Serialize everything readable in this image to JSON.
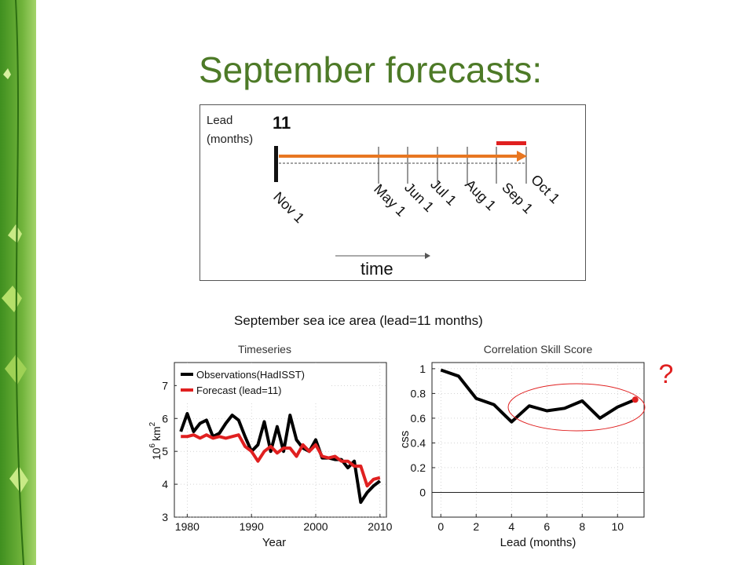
{
  "slide": {
    "title": "September forecasts:"
  },
  "timeline": {
    "lead_label_line1": "Lead",
    "lead_label_line2": "(months)",
    "lead_value": "11",
    "time_label": "time",
    "months": [
      "Nov 1",
      "May 1",
      "Jun 1",
      "Jul 1",
      "Aug 1",
      "Sep 1",
      "Oct 1"
    ],
    "colors": {
      "arrow": "#e87722",
      "target": "#e02020"
    }
  },
  "figure": {
    "title": "September sea ice area (lead=11 months)",
    "question_mark": "?"
  },
  "chart_data": [
    {
      "type": "line",
      "title": "Timeseries",
      "xlabel": "Year",
      "ylabel_base": "10",
      "ylabel_exp": "6",
      "ylabel_unit": "km",
      "ylabel_unit_exp": "2",
      "xlim": [
        1978,
        2011
      ],
      "ylim": [
        3,
        7.7
      ],
      "xticks": [
        1980,
        1990,
        2000,
        2010
      ],
      "yticks": [
        3,
        4,
        5,
        6,
        7
      ],
      "legend_position": "top-left",
      "series": [
        {
          "name": "Observations(HadISST)",
          "color": "#000000",
          "x": [
            1979,
            1980,
            1981,
            1982,
            1983,
            1984,
            1985,
            1986,
            1987,
            1988,
            1989,
            1990,
            1991,
            1992,
            1993,
            1994,
            1995,
            1996,
            1997,
            1998,
            1999,
            2000,
            2001,
            2002,
            2003,
            2004,
            2005,
            2006,
            2007,
            2008,
            2009,
            2010
          ],
          "values": [
            5.6,
            6.15,
            5.6,
            5.85,
            5.95,
            5.45,
            5.55,
            5.85,
            6.1,
            5.95,
            5.45,
            5.0,
            5.2,
            5.9,
            5.0,
            5.75,
            5.0,
            6.1,
            5.35,
            5.1,
            5.0,
            5.35,
            4.8,
            4.8,
            4.75,
            4.75,
            4.5,
            4.7,
            3.45,
            3.75,
            3.95,
            4.1
          ]
        },
        {
          "name": "Forecast (lead=11)",
          "color": "#e02020",
          "x": [
            1979,
            1980,
            1981,
            1982,
            1983,
            1984,
            1985,
            1986,
            1987,
            1988,
            1989,
            1990,
            1991,
            1992,
            1993,
            1994,
            1995,
            1996,
            1997,
            1998,
            1999,
            2000,
            2001,
            2002,
            2003,
            2004,
            2005,
            2006,
            2007,
            2008,
            2009,
            2010
          ],
          "values": [
            5.45,
            5.45,
            5.5,
            5.4,
            5.5,
            5.4,
            5.45,
            5.4,
            5.45,
            5.5,
            5.15,
            5.0,
            4.7,
            5.0,
            5.15,
            4.95,
            5.1,
            5.1,
            4.85,
            5.2,
            5.0,
            5.2,
            4.85,
            4.8,
            4.85,
            4.7,
            4.7,
            4.55,
            4.55,
            3.95,
            4.15,
            4.2
          ]
        }
      ]
    },
    {
      "type": "line",
      "title": "Correlation Skill Score",
      "xlabel": "Lead (months)",
      "ylabel": "css",
      "xlim": [
        -0.5,
        11.5
      ],
      "ylim": [
        -0.2,
        1.05
      ],
      "xticks": [
        0,
        2,
        4,
        6,
        8,
        10
      ],
      "yticks": [
        0,
        0.2,
        0.4,
        0.6,
        0.8,
        1
      ],
      "series": [
        {
          "color": "#000000",
          "x": [
            0,
            1,
            2,
            3,
            4,
            5,
            6,
            7,
            8,
            9,
            10,
            11
          ],
          "values": [
            0.99,
            0.94,
            0.76,
            0.71,
            0.57,
            0.7,
            0.66,
            0.68,
            0.74,
            0.6,
            0.69,
            0.75
          ]
        }
      ],
      "highlight_color": "#e02020"
    }
  ]
}
